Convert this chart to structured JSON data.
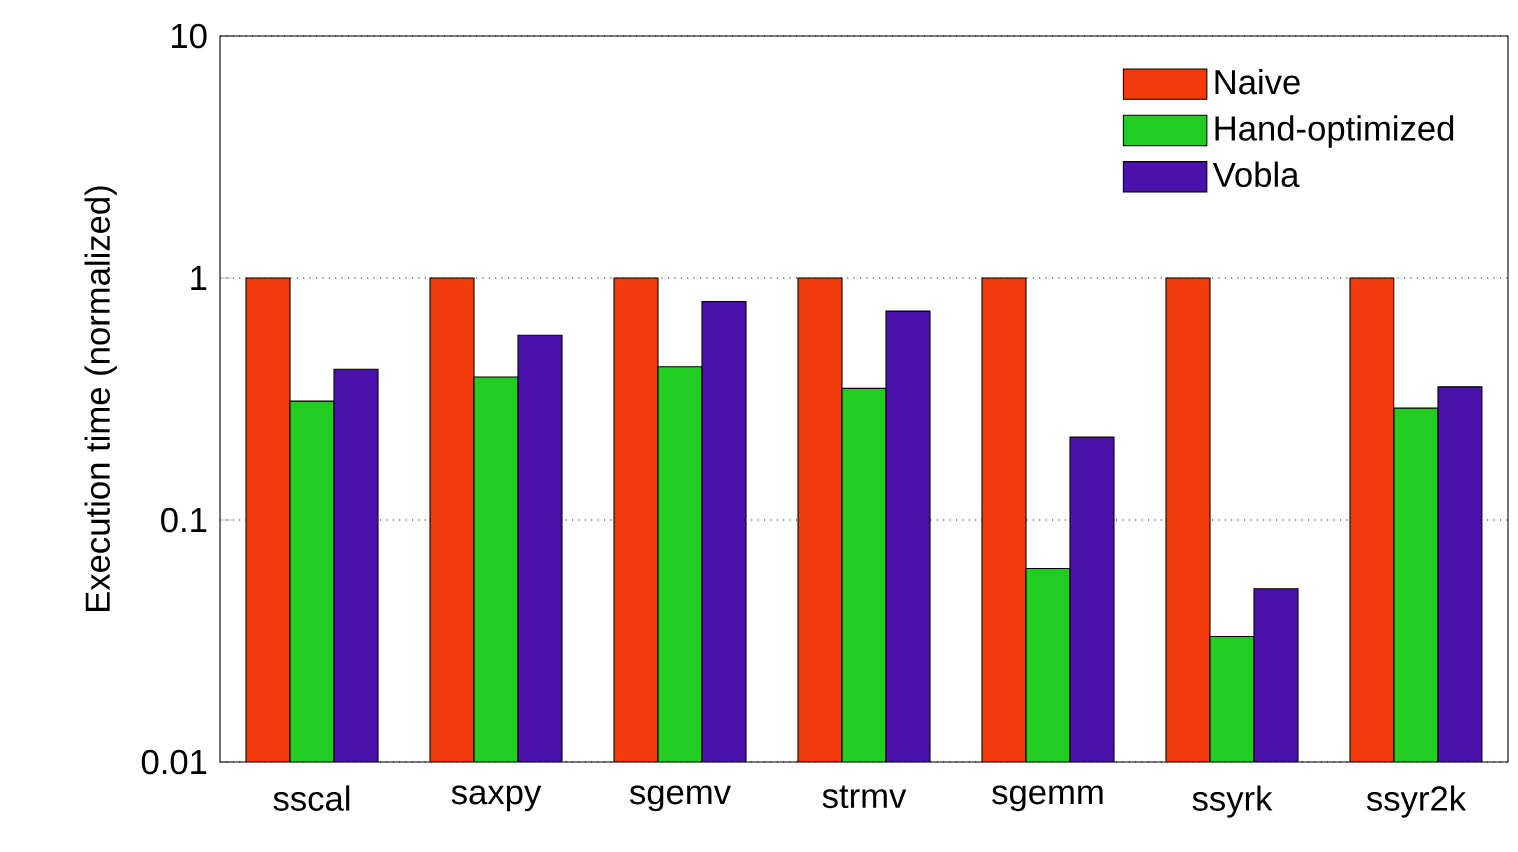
{
  "chart_data": {
    "type": "bar",
    "ylabel": "Execution time (normalized)",
    "categories": [
      "sscal",
      "saxpy",
      "sgemv",
      "strmv",
      "sgemm",
      "ssyrk",
      "ssyr2k"
    ],
    "series": [
      {
        "name": "Naive",
        "color": "#f03c0a",
        "values": [
          1,
          1,
          1,
          1,
          1,
          1,
          1
        ]
      },
      {
        "name": "Hand-optimized",
        "color": "#22cc22",
        "values": [
          0.31,
          0.39,
          0.43,
          0.35,
          0.063,
          0.033,
          0.29
        ]
      },
      {
        "name": "Vobla",
        "color": "#4a12aa",
        "values": [
          0.42,
          0.58,
          0.8,
          0.73,
          0.22,
          0.052,
          0.355
        ]
      }
    ],
    "log": "y",
    "ylim": [
      0.01,
      10
    ],
    "yticks": [
      0.01,
      0.1,
      1,
      10
    ],
    "grid": "y",
    "legend": "top right"
  }
}
